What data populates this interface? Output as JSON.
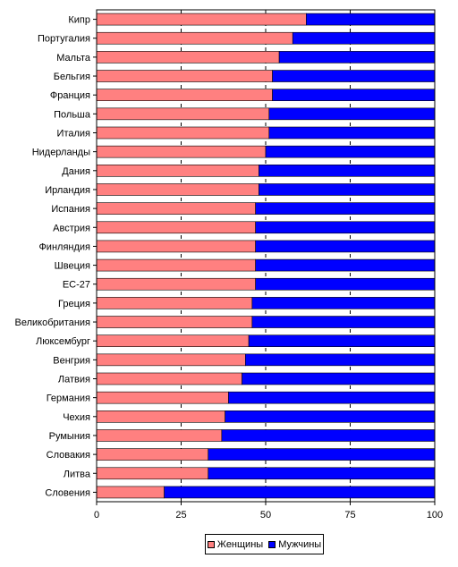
{
  "chart_data": {
    "type": "bar",
    "orientation": "horizontal",
    "stacked": true,
    "percent": true,
    "categories": [
      "Кипр",
      "Португалия",
      "Мальта",
      "Бельгия",
      "Франция",
      "Польша",
      "Италия",
      "Нидерланды",
      "Дания",
      "Ирландия",
      "Испания",
      "Австрия",
      "Финляндия",
      "Швеция",
      "ЕС-27",
      "Греция",
      "Великобритания",
      "Люксембург",
      "Венгрия",
      "Латвия",
      "Германия",
      "Чехия",
      "Румыния",
      "Словакия",
      "Литва",
      "Словения"
    ],
    "series": [
      {
        "name": "Женщины",
        "color": "#ff8080",
        "values": [
          62,
          58,
          54,
          52,
          52,
          51,
          51,
          50,
          48,
          48,
          47,
          47,
          47,
          47,
          47,
          46,
          46,
          45,
          44,
          43,
          39,
          38,
          37,
          33,
          33,
          20
        ]
      },
      {
        "name": "Мужчины",
        "color": "#0000ff",
        "values": [
          38,
          42,
          46,
          48,
          48,
          49,
          49,
          50,
          52,
          52,
          53,
          53,
          53,
          53,
          53,
          54,
          54,
          55,
          56,
          57,
          61,
          62,
          63,
          67,
          67,
          80
        ]
      }
    ],
    "xlim": [
      0,
      100
    ],
    "xticks": [
      0,
      25,
      50,
      75,
      100
    ],
    "grid": "vertical-dashed",
    "legend": "bottom"
  }
}
